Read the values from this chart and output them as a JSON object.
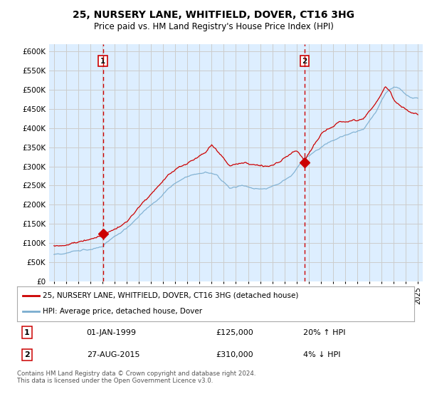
{
  "title": "25, NURSERY LANE, WHITFIELD, DOVER, CT16 3HG",
  "subtitle": "Price paid vs. HM Land Registry's House Price Index (HPI)",
  "ylim": [
    0,
    620000
  ],
  "yticks": [
    0,
    50000,
    100000,
    150000,
    200000,
    250000,
    300000,
    350000,
    400000,
    450000,
    500000,
    550000,
    600000
  ],
  "sale1_date_num": 1999.04,
  "sale1_price": 125000,
  "sale1_label": "1",
  "sale1_datestr": "01-JAN-1999",
  "sale2_date_num": 2015.65,
  "sale2_price": 310000,
  "sale2_label": "2",
  "sale2_datestr": "27-AUG-2015",
  "line_color_red": "#cc0000",
  "line_color_blue": "#7aadcf",
  "vline_color": "#cc0000",
  "grid_color": "#cccccc",
  "plot_bg_color": "#ddeeff",
  "background_color": "#ffffff",
  "legend_label_red": "25, NURSERY LANE, WHITFIELD, DOVER, CT16 3HG (detached house)",
  "legend_label_blue": "HPI: Average price, detached house, Dover",
  "footer_text": "Contains HM Land Registry data © Crown copyright and database right 2024.\nThis data is licensed under the Open Government Licence v3.0.",
  "table_row1": [
    "1",
    "01-JAN-1999",
    "£125,000",
    "20% ↑ HPI"
  ],
  "table_row2": [
    "2",
    "27-AUG-2015",
    "£310,000",
    "4% ↓ HPI"
  ]
}
